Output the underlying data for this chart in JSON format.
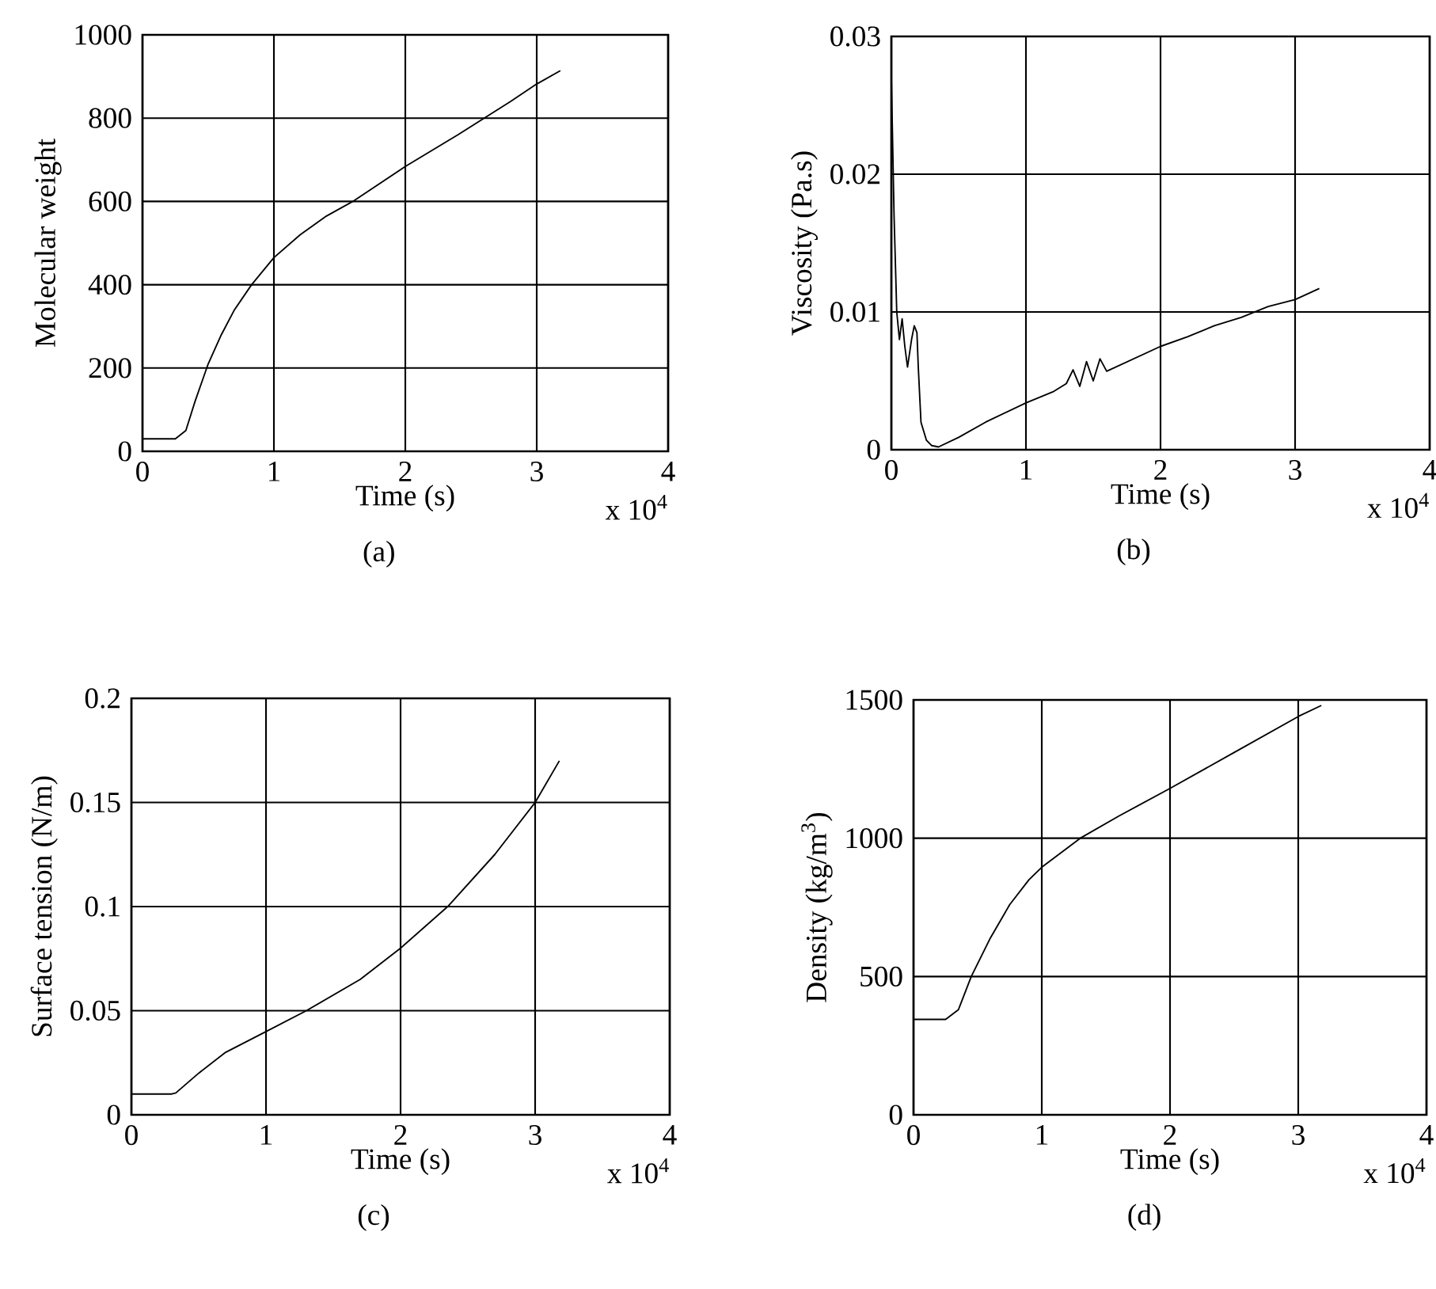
{
  "chart_data": [
    {
      "type": "line",
      "xlabel": "Time (s)",
      "ylabel": "Molecular weight",
      "annotations": [
        "x 10$^{4}$",
        "(a)"
      ],
      "grid": true,
      "marker": "none",
      "line_style": "solid",
      "xlim": [
        0,
        4
      ],
      "ylim": [
        0,
        1000
      ],
      "xticks": [
        0,
        1,
        2,
        3,
        4
      ],
      "yticks": [
        0,
        200,
        400,
        600,
        800,
        1000
      ],
      "series": [
        {
          "color": "#000000",
          "x": [
            0,
            0.25,
            0.33,
            0.4,
            0.5,
            0.6,
            0.7,
            0.83,
            1.0,
            1.2,
            1.4,
            1.6,
            2.0,
            2.4,
            2.8,
            3.0,
            3.18
          ],
          "values": [
            30,
            30,
            50,
            120,
            210,
            280,
            340,
            400,
            465,
            520,
            565,
            600,
            684,
            760,
            840,
            882,
            914
          ]
        }
      ]
    },
    {
      "type": "line",
      "xlabel": "Time (s)",
      "ylabel": "Viscosity (Pa.s)",
      "annotations": [
        "x 10$^{4}$",
        "(b)"
      ],
      "grid": true,
      "marker": "none",
      "line_style": "solid",
      "xlim": [
        0,
        4
      ],
      "ylim": [
        0,
        0.03
      ],
      "xticks": [
        0,
        1,
        2,
        3,
        4
      ],
      "yticks": [
        0,
        0.01,
        0.02,
        0.03
      ],
      "series": [
        {
          "color": "#000000",
          "x": [
            0,
            0.02,
            0.04,
            0.06,
            0.08,
            0.1,
            0.12,
            0.15,
            0.17,
            0.19,
            0.2,
            0.22,
            0.26,
            0.3,
            0.35,
            0.5,
            0.7,
            1.0,
            1.2,
            1.3,
            1.35,
            1.4,
            1.45,
            1.5,
            1.55,
            1.6,
            1.8,
            2.0,
            2.2,
            2.4,
            2.6,
            2.8,
            3.0,
            3.18
          ],
          "values": [
            0.027,
            0.017,
            0.01,
            0.008,
            0.0095,
            0.0075,
            0.006,
            0.008,
            0.009,
            0.0085,
            0.006,
            0.002,
            0.0007,
            0.0003,
            0.0002,
            0.0009,
            0.002,
            0.0034,
            0.0042,
            0.0048,
            0.0058,
            0.0046,
            0.0064,
            0.005,
            0.0066,
            0.0057,
            0.0066,
            0.0075,
            0.0082,
            0.009,
            0.0096,
            0.0104,
            0.0109,
            0.0117
          ]
        }
      ]
    },
    {
      "type": "line",
      "xlabel": "Time (s)",
      "ylabel": "Surface tension (N/m)",
      "annotations": [
        "x 10$^{4}$",
        "(c)"
      ],
      "grid": true,
      "marker": "none",
      "line_style": "solid",
      "xlim": [
        0,
        4
      ],
      "ylim": [
        0,
        0.2
      ],
      "xticks": [
        0,
        1,
        2,
        3,
        4
      ],
      "yticks": [
        0,
        0.05,
        0.1,
        0.15,
        0.2
      ],
      "series": [
        {
          "color": "#000000",
          "x": [
            0,
            0.3,
            0.33,
            0.5,
            0.7,
            1.0,
            1.3,
            1.7,
            2.0,
            2.35,
            2.7,
            3.0,
            3.18
          ],
          "values": [
            0.01,
            0.01,
            0.0105,
            0.02,
            0.03,
            0.04,
            0.05,
            0.065,
            0.08,
            0.1,
            0.125,
            0.15,
            0.17
          ]
        }
      ]
    },
    {
      "type": "line",
      "xlabel": "Time (s)",
      "ylabel": "Density (kg/m$^{3}$)",
      "annotations": [
        "x 10$^{4}$",
        "(d)"
      ],
      "grid": true,
      "marker": "none",
      "line_style": "solid",
      "xlim": [
        0,
        4
      ],
      "ylim": [
        0,
        1500
      ],
      "xticks": [
        0,
        1,
        2,
        3,
        4
      ],
      "yticks": [
        0,
        500,
        1000,
        1500
      ],
      "series": [
        {
          "color": "#000000",
          "x": [
            0,
            0.25,
            0.35,
            0.45,
            0.6,
            0.75,
            0.9,
            1.0,
            1.3,
            1.6,
            2.0,
            2.5,
            3.0,
            3.18
          ],
          "values": [
            345,
            345,
            380,
            500,
            640,
            760,
            850,
            895,
            1000,
            1080,
            1180,
            1310,
            1440,
            1480
          ]
        }
      ]
    }
  ]
}
